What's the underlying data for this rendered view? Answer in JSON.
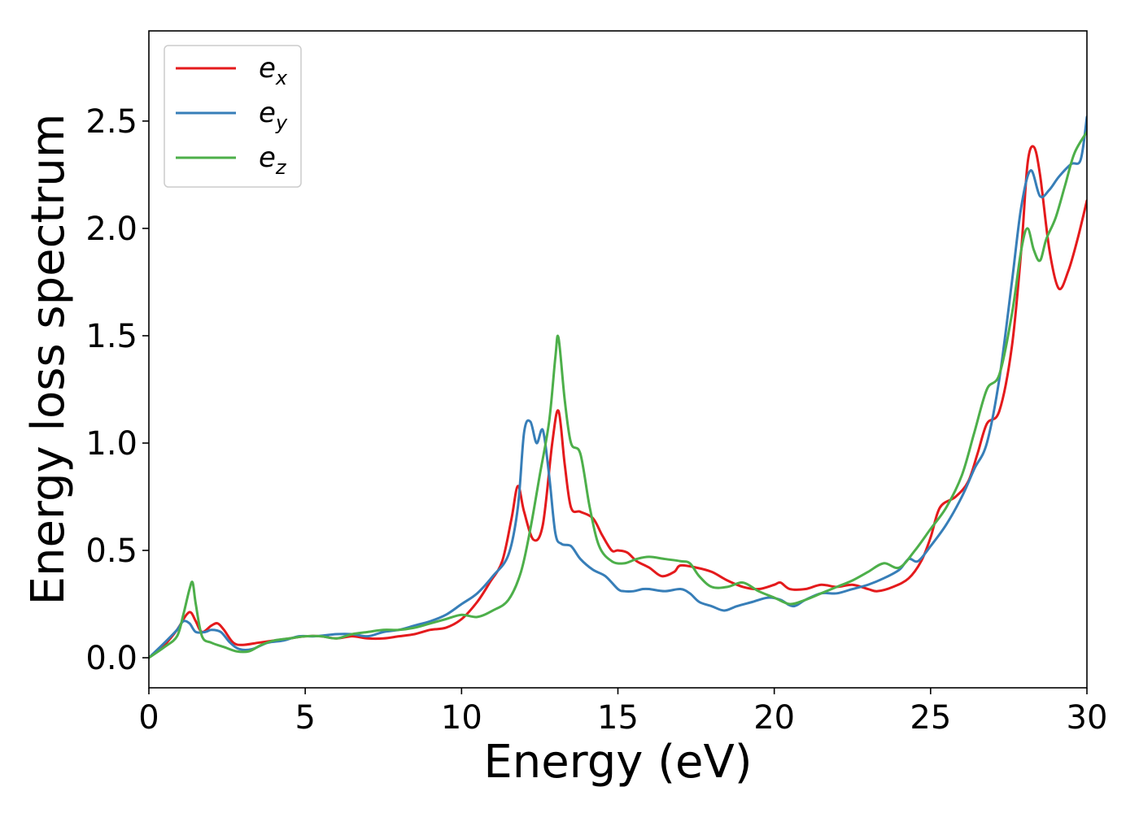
{
  "chart_data": {
    "type": "line",
    "xlabel": "Energy (eV)",
    "ylabel": "Energy loss spectrum",
    "xlim": [
      0,
      30
    ],
    "ylim": [
      -0.14,
      2.92
    ],
    "xticks": [
      0,
      5,
      10,
      15,
      20,
      25,
      30
    ],
    "yticks": [
      0.0,
      0.5,
      1.0,
      1.5,
      2.0,
      2.5
    ],
    "xtick_labels": [
      "0",
      "5",
      "10",
      "15",
      "20",
      "25",
      "30"
    ],
    "ytick_labels": [
      "0.0",
      "0.5",
      "1.0",
      "1.5",
      "2.0",
      "2.5"
    ],
    "grid": false,
    "legend_position": "top-left",
    "series": [
      {
        "name": "e_x",
        "label_main": "e",
        "label_sub": "x",
        "color": "#e41a1c",
        "x": [
          0,
          0.5,
          0.9,
          1.2,
          1.35,
          1.5,
          1.7,
          2.0,
          2.2,
          2.4,
          2.7,
          3.0,
          3.5,
          4.0,
          4.5,
          5.0,
          5.5,
          6.0,
          6.5,
          7.0,
          7.5,
          8.0,
          8.5,
          9.0,
          9.5,
          10.0,
          10.5,
          10.9,
          11.3,
          11.6,
          11.8,
          12.0,
          12.3,
          12.6,
          12.9,
          13.1,
          13.3,
          13.5,
          13.8,
          14.2,
          14.5,
          14.8,
          15.0,
          15.3,
          15.6,
          16.0,
          16.4,
          16.8,
          17.0,
          17.5,
          18.0,
          18.5,
          19.0,
          19.5,
          20.0,
          20.2,
          20.5,
          21.0,
          21.5,
          22.0,
          22.5,
          23.0,
          23.3,
          23.8,
          24.3,
          24.7,
          25.0,
          25.3,
          25.8,
          26.2,
          26.5,
          26.8,
          27.2,
          27.6,
          27.9,
          28.1,
          28.3,
          28.5,
          28.8,
          29.1,
          29.4,
          29.7,
          30.0
        ],
        "y": [
          0.0,
          0.06,
          0.13,
          0.2,
          0.21,
          0.17,
          0.12,
          0.15,
          0.16,
          0.13,
          0.07,
          0.06,
          0.07,
          0.08,
          0.09,
          0.1,
          0.1,
          0.09,
          0.1,
          0.09,
          0.09,
          0.1,
          0.11,
          0.13,
          0.14,
          0.18,
          0.26,
          0.35,
          0.45,
          0.65,
          0.8,
          0.68,
          0.55,
          0.62,
          1.0,
          1.15,
          0.9,
          0.7,
          0.68,
          0.65,
          0.57,
          0.5,
          0.5,
          0.49,
          0.45,
          0.42,
          0.38,
          0.4,
          0.43,
          0.42,
          0.4,
          0.36,
          0.33,
          0.32,
          0.34,
          0.35,
          0.32,
          0.32,
          0.34,
          0.33,
          0.34,
          0.32,
          0.31,
          0.33,
          0.37,
          0.45,
          0.56,
          0.7,
          0.75,
          0.82,
          0.95,
          1.09,
          1.15,
          1.45,
          1.9,
          2.3,
          2.38,
          2.25,
          1.9,
          1.72,
          1.8,
          1.95,
          2.13
        ]
      },
      {
        "name": "e_y",
        "label_main": "e",
        "label_sub": "y",
        "color": "#377eb8",
        "x": [
          0,
          0.5,
          0.9,
          1.1,
          1.3,
          1.5,
          1.8,
          2.0,
          2.3,
          2.6,
          2.9,
          3.3,
          3.8,
          4.3,
          4.8,
          5.3,
          6.0,
          6.5,
          7.0,
          7.5,
          8.0,
          8.5,
          9.0,
          9.5,
          10.0,
          10.5,
          11.0,
          11.5,
          11.8,
          12.0,
          12.2,
          12.4,
          12.6,
          12.8,
          13.0,
          13.2,
          13.5,
          13.8,
          14.2,
          14.6,
          15.0,
          15.2,
          15.5,
          15.8,
          16.0,
          16.5,
          17.0,
          17.3,
          17.6,
          18.0,
          18.4,
          18.8,
          19.3,
          19.8,
          20.2,
          20.6,
          21.0,
          21.5,
          22.0,
          22.5,
          23.0,
          23.5,
          24.0,
          24.3,
          24.6,
          25.0,
          25.5,
          26.0,
          26.4,
          26.8,
          27.2,
          27.6,
          27.9,
          28.2,
          28.5,
          28.8,
          29.1,
          29.5,
          29.8,
          30.0
        ],
        "y": [
          0.0,
          0.07,
          0.13,
          0.17,
          0.16,
          0.12,
          0.12,
          0.13,
          0.12,
          0.07,
          0.04,
          0.04,
          0.07,
          0.08,
          0.1,
          0.1,
          0.11,
          0.11,
          0.1,
          0.12,
          0.13,
          0.15,
          0.17,
          0.2,
          0.25,
          0.3,
          0.38,
          0.48,
          0.7,
          1.05,
          1.1,
          1.0,
          1.06,
          0.85,
          0.58,
          0.53,
          0.52,
          0.46,
          0.41,
          0.38,
          0.32,
          0.31,
          0.31,
          0.32,
          0.32,
          0.31,
          0.32,
          0.3,
          0.26,
          0.24,
          0.22,
          0.24,
          0.26,
          0.28,
          0.27,
          0.24,
          0.27,
          0.3,
          0.3,
          0.32,
          0.34,
          0.37,
          0.41,
          0.46,
          0.45,
          0.52,
          0.62,
          0.75,
          0.88,
          1.0,
          1.3,
          1.75,
          2.1,
          2.27,
          2.15,
          2.18,
          2.24,
          2.3,
          2.32,
          2.52
        ]
      },
      {
        "name": "e_z",
        "label_main": "e",
        "label_sub": "z",
        "color": "#4daf4a",
        "x": [
          0,
          0.5,
          0.9,
          1.1,
          1.3,
          1.4,
          1.5,
          1.7,
          2.0,
          2.4,
          2.8,
          3.2,
          3.6,
          4.0,
          4.5,
          5.0,
          5.5,
          6.0,
          6.5,
          7.0,
          7.5,
          8.0,
          8.5,
          9.0,
          9.5,
          10.0,
          10.5,
          11.0,
          11.5,
          11.9,
          12.2,
          12.5,
          12.8,
          13.0,
          13.1,
          13.3,
          13.5,
          13.8,
          14.1,
          14.4,
          14.8,
          15.2,
          15.6,
          16.0,
          16.5,
          17.0,
          17.3,
          17.6,
          18.0,
          18.5,
          19.0,
          19.5,
          20.0,
          20.5,
          21.0,
          21.5,
          22.0,
          22.5,
          23.0,
          23.5,
          24.0,
          24.5,
          25.0,
          25.5,
          26.0,
          26.4,
          26.8,
          27.2,
          27.6,
          27.9,
          28.1,
          28.3,
          28.5,
          28.7,
          29.0,
          29.3,
          29.6,
          30.0
        ],
        "y": [
          0.0,
          0.05,
          0.1,
          0.2,
          0.32,
          0.35,
          0.25,
          0.1,
          0.07,
          0.05,
          0.03,
          0.03,
          0.06,
          0.08,
          0.09,
          0.1,
          0.1,
          0.09,
          0.11,
          0.12,
          0.13,
          0.13,
          0.14,
          0.16,
          0.18,
          0.2,
          0.19,
          0.22,
          0.27,
          0.4,
          0.6,
          0.85,
          1.1,
          1.4,
          1.49,
          1.2,
          1.0,
          0.95,
          0.7,
          0.52,
          0.45,
          0.44,
          0.46,
          0.47,
          0.46,
          0.45,
          0.44,
          0.38,
          0.33,
          0.33,
          0.35,
          0.31,
          0.28,
          0.25,
          0.27,
          0.3,
          0.33,
          0.36,
          0.4,
          0.44,
          0.42,
          0.5,
          0.6,
          0.7,
          0.85,
          1.05,
          1.25,
          1.32,
          1.6,
          1.9,
          2.0,
          1.9,
          1.85,
          1.95,
          2.05,
          2.2,
          2.35,
          2.45
        ]
      }
    ]
  }
}
